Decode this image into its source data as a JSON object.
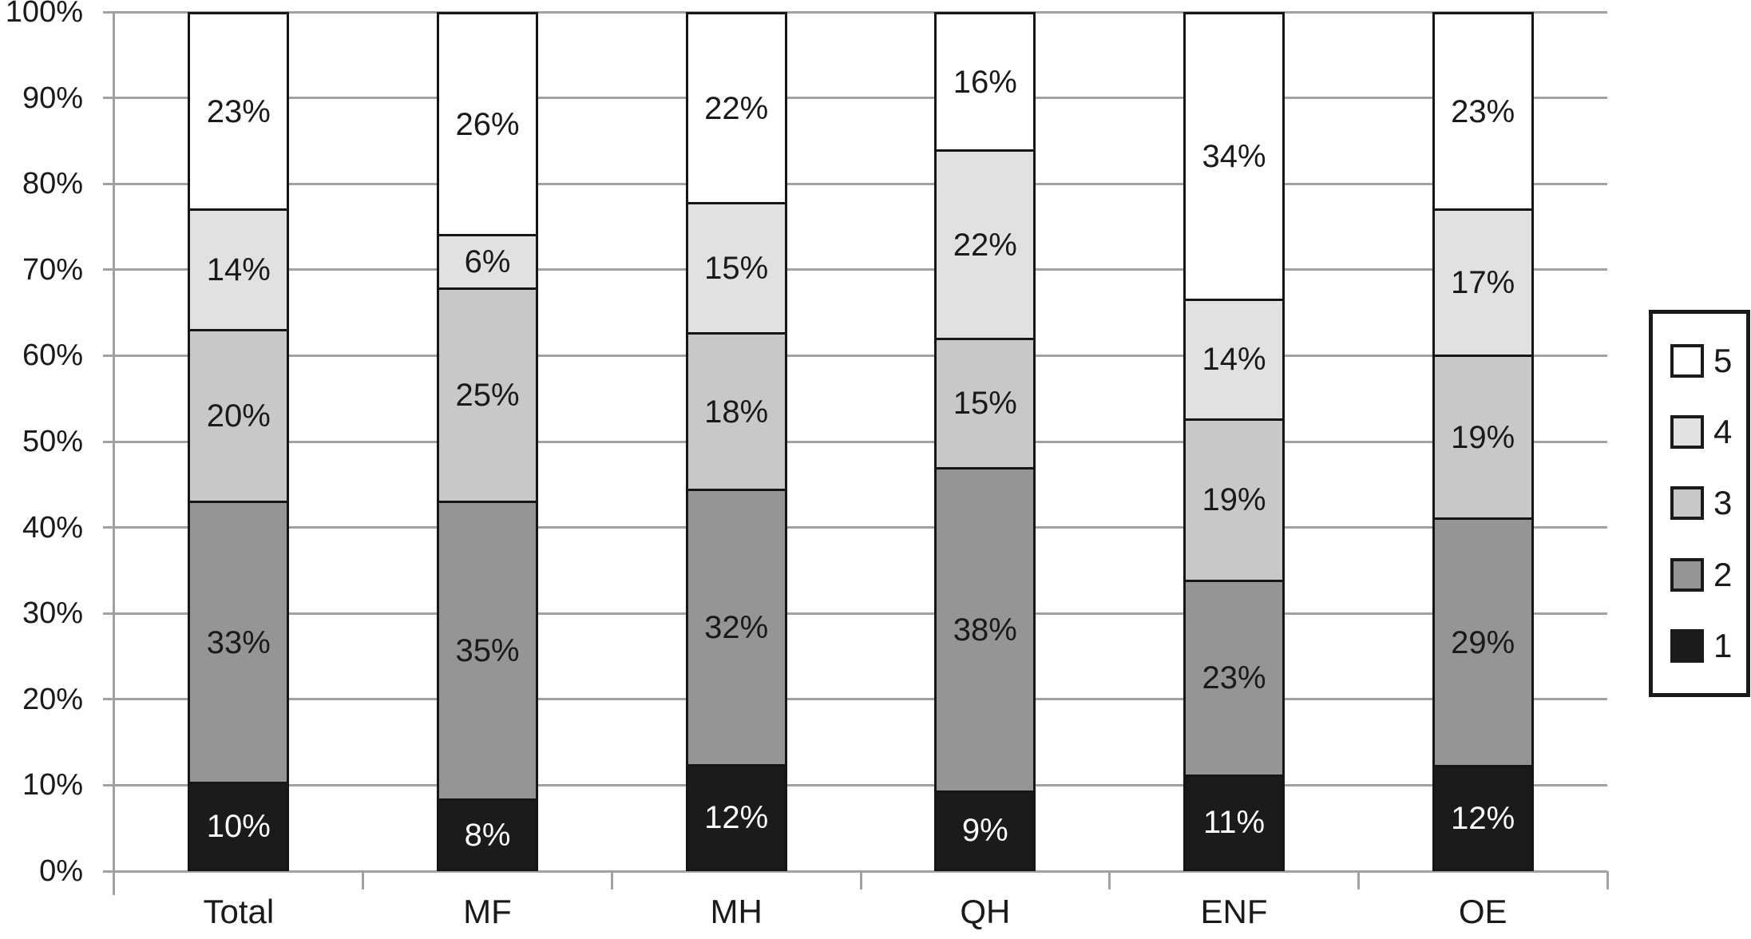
{
  "chart_data": {
    "type": "bar",
    "variant": "stacked-100-percent",
    "title": "",
    "categories": [
      "Total",
      "MF",
      "MH",
      "QH",
      "ENF",
      "OE"
    ],
    "series": [
      {
        "name": "1",
        "color": "#1b1b1b",
        "label_color": "#ffffff",
        "values": [
          10,
          8,
          12,
          9,
          11,
          12
        ]
      },
      {
        "name": "2",
        "color": "#959595",
        "label_color": "#1a1a1a",
        "values": [
          33,
          35,
          32,
          38,
          23,
          29
        ]
      },
      {
        "name": "3",
        "color": "#c8c8c8",
        "label_color": "#1a1a1a",
        "values": [
          20,
          25,
          18,
          15,
          19,
          19
        ]
      },
      {
        "name": "4",
        "color": "#e1e1e1",
        "label_color": "#1a1a1a",
        "values": [
          14,
          6,
          15,
          22,
          14,
          17
        ]
      },
      {
        "name": "5",
        "color": "#ffffff",
        "label_color": "#1a1a1a",
        "values": [
          23,
          26,
          22,
          16,
          34,
          23
        ]
      }
    ],
    "data_label_suffix": "%",
    "y_axis": {
      "min": 0,
      "max": 100,
      "step": 10,
      "ticks": [
        "0%",
        "10%",
        "20%",
        "30%",
        "40%",
        "50%",
        "60%",
        "70%",
        "80%",
        "90%",
        "100%"
      ]
    },
    "x_axis": {
      "ticks_between_categories": true
    },
    "legend": {
      "position": "right",
      "entries": [
        {
          "label": "5",
          "color": "#ffffff"
        },
        {
          "label": "4",
          "color": "#e1e1e1"
        },
        {
          "label": "3",
          "color": "#c8c8c8"
        },
        {
          "label": "2",
          "color": "#959595"
        },
        {
          "label": "1",
          "color": "#1b1b1b"
        }
      ]
    },
    "grid": {
      "show": true,
      "color": "#a1a1a1"
    }
  },
  "colors": {
    "background": "#ffffff",
    "axis": "#a1a1a1",
    "bar_border": "#161616",
    "text": "#1a1a1a"
  }
}
